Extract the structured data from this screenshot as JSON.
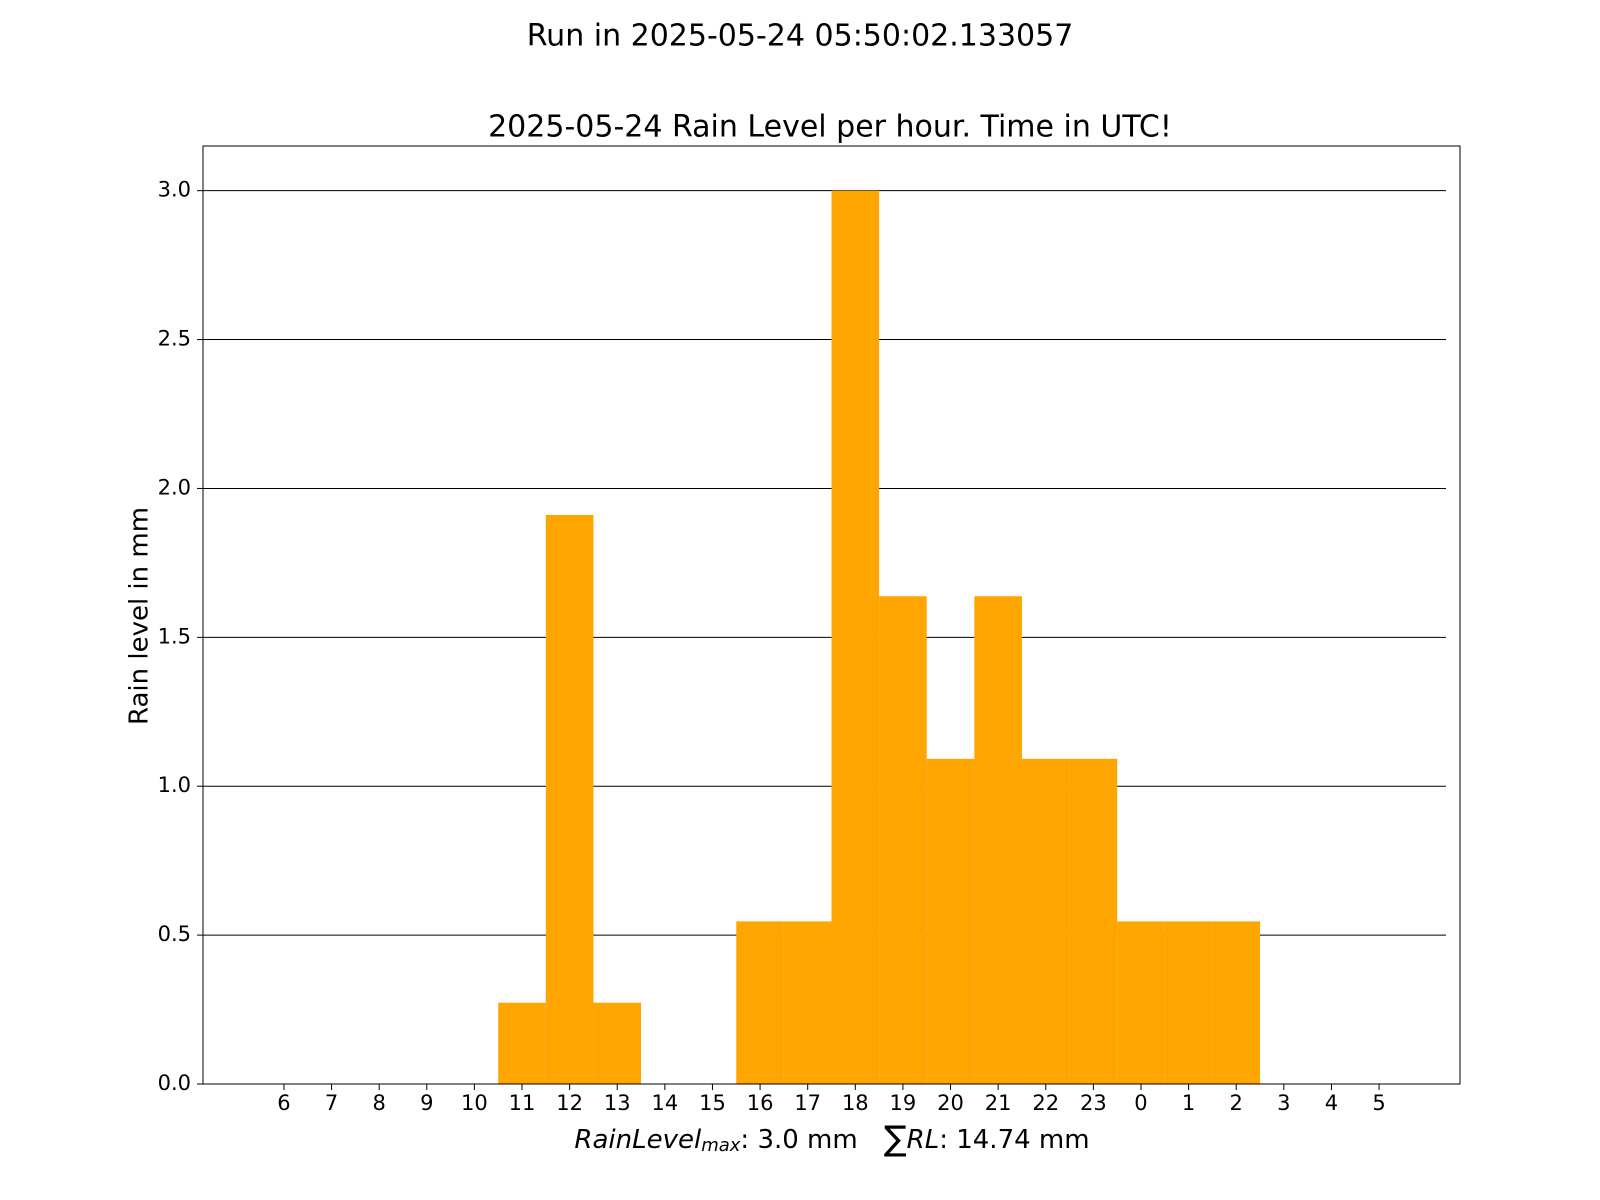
{
  "chart_data": {
    "type": "bar",
    "suptitle": "Run in 2025-05-24 05:50:02.133057",
    "title": "2025-05-24 Rain Level per hour. Time in UTC!",
    "ylabel": "Rain level in mm",
    "xlabel": {
      "max_name": "RainLevel",
      "max_sub": "max",
      "max_text": ": 3.0 mm",
      "sum_symbol": "∑",
      "sum_name": "RL",
      "sum_text": ": 14.74 mm"
    },
    "categories": [
      "6",
      "7",
      "8",
      "9",
      "10",
      "11",
      "12",
      "13",
      "14",
      "15",
      "16",
      "17",
      "18",
      "19",
      "20",
      "21",
      "22",
      "23",
      "0",
      "1",
      "2",
      "3",
      "4",
      "5"
    ],
    "values": [
      0,
      0,
      0,
      0,
      0,
      0.273,
      1.911,
      0.273,
      0,
      0,
      0.546,
      0.546,
      3.0,
      1.638,
      1.092,
      1.638,
      1.092,
      1.092,
      0.546,
      0.546,
      0.546,
      0,
      0,
      0
    ],
    "color": "#ffa500",
    "ylim": [
      0,
      3.15
    ],
    "yticks": [
      {
        "value": 0,
        "label": "0.0"
      },
      {
        "value": 0.5,
        "label": "0.5"
      },
      {
        "value": 1,
        "label": "1.0"
      },
      {
        "value": 1.5,
        "label": "1.5"
      },
      {
        "value": 2,
        "label": "2.0"
      },
      {
        "value": 2.5,
        "label": "2.5"
      },
      {
        "value": 3,
        "label": "3.0"
      }
    ],
    "grid": true
  }
}
